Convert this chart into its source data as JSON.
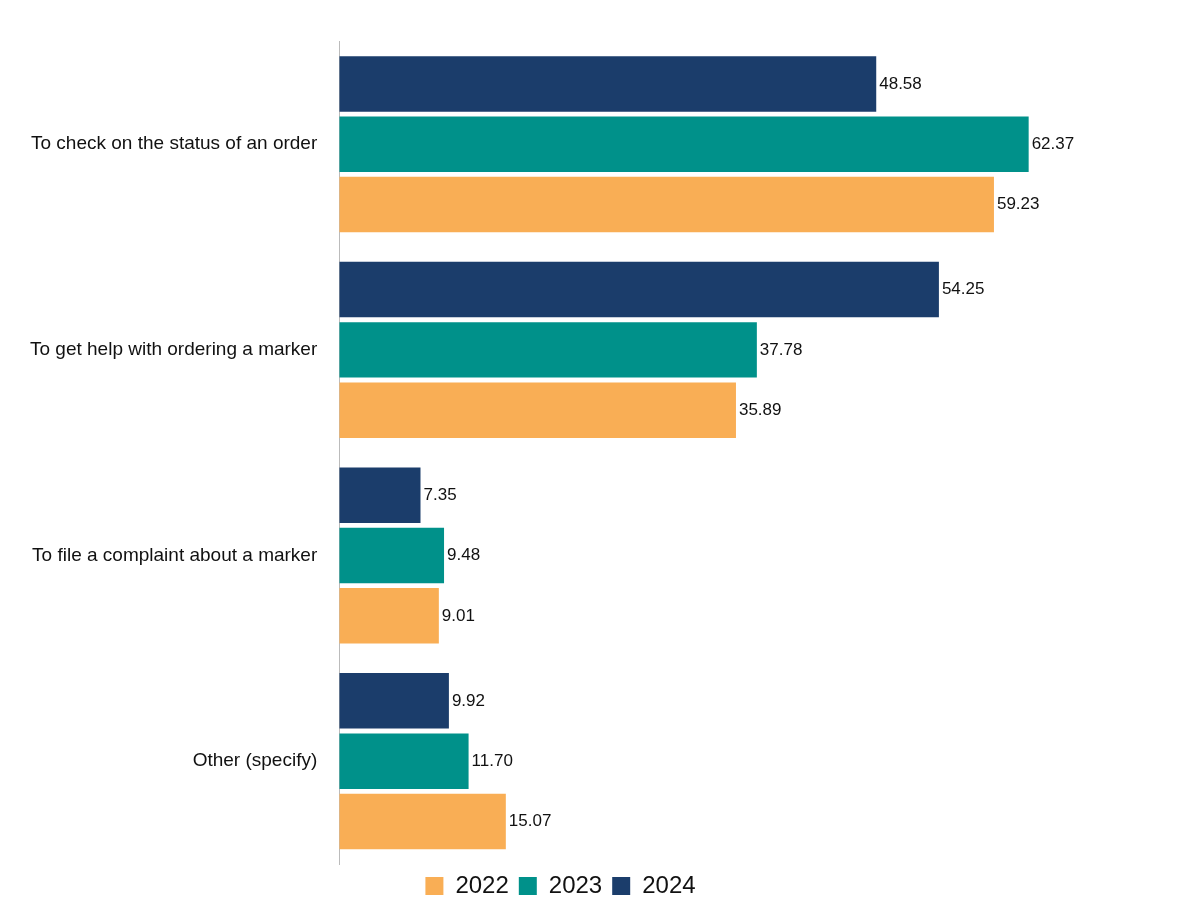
{
  "chart_data": {
    "type": "bar",
    "orientation": "horizontal",
    "categories": [
      "To check on the status of an order",
      "To get help with ordering a marker",
      "To file a complaint about a marker",
      "Other (specify)"
    ],
    "series": [
      {
        "name": "2022",
        "color": "#f9ae55",
        "values": [
          59.23,
          35.89,
          9.01,
          15.07
        ],
        "value_labels": [
          "59.23",
          "35.89",
          "9.01",
          "15.07"
        ]
      },
      {
        "name": "2023",
        "color": "#00918a",
        "values": [
          62.37,
          37.78,
          9.48,
          11.7
        ],
        "value_labels": [
          "62.37",
          "37.78",
          "9.48",
          "11.70"
        ]
      },
      {
        "name": "2024",
        "color": "#1b3d6b",
        "values": [
          48.58,
          54.25,
          7.35,
          9.92
        ],
        "value_labels": [
          "48.58",
          "54.25",
          "7.35",
          "9.92"
        ]
      }
    ],
    "tick_labels": "y",
    "legend": "bottom"
  }
}
